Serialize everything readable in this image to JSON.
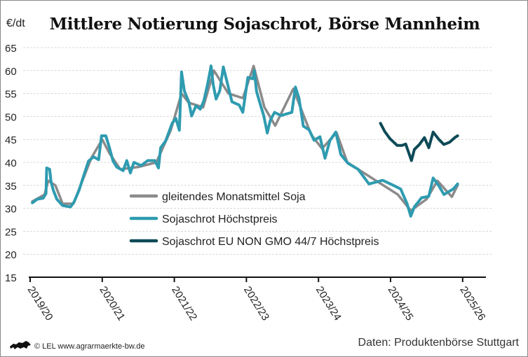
{
  "chart_data": {
    "type": "line",
    "title": "Mittlere Notierung Sojaschrot, Börse Mannheim",
    "ylabel": "€/dt",
    "ylim": [
      15,
      65
    ],
    "yticks": [
      15,
      20,
      25,
      30,
      35,
      40,
      45,
      50,
      55,
      60,
      65
    ],
    "xlim": [
      2019.5,
      2026.1
    ],
    "xticks": [
      {
        "x": 2019.5,
        "label": "2019/20"
      },
      {
        "x": 2020.5,
        "label": "2020/21"
      },
      {
        "x": 2021.5,
        "label": "2021/22"
      },
      {
        "x": 2022.5,
        "label": "2022/23"
      },
      {
        "x": 2023.5,
        "label": "2023/24"
      },
      {
        "x": 2024.5,
        "label": "2024/25"
      },
      {
        "x": 2025.5,
        "label": "2025/26"
      }
    ],
    "grid": "horizontal dashed",
    "legend_placement": "center-left",
    "series": [
      {
        "name": "gleitendes Monatsmittel Soja",
        "color": "#8c8a8a",
        "points": [
          [
            2019.53,
            31.5
          ],
          [
            2019.7,
            33
          ],
          [
            2019.75,
            36
          ],
          [
            2019.85,
            35
          ],
          [
            2019.95,
            31
          ],
          [
            2020.1,
            31
          ],
          [
            2020.25,
            37
          ],
          [
            2020.35,
            41
          ],
          [
            2020.5,
            45
          ],
          [
            2020.6,
            42
          ],
          [
            2020.75,
            38.5
          ],
          [
            2021.0,
            39
          ],
          [
            2021.25,
            40
          ],
          [
            2021.45,
            47
          ],
          [
            2021.6,
            55
          ],
          [
            2021.7,
            53
          ],
          [
            2021.9,
            52
          ],
          [
            2022.05,
            60
          ],
          [
            2022.25,
            55
          ],
          [
            2022.45,
            54
          ],
          [
            2022.6,
            61
          ],
          [
            2022.75,
            52
          ],
          [
            2022.9,
            48
          ],
          [
            2023.15,
            56
          ],
          [
            2023.4,
            46
          ],
          [
            2023.55,
            43
          ],
          [
            2023.75,
            46.5
          ],
          [
            2023.9,
            40
          ],
          [
            2024.3,
            36
          ],
          [
            2024.6,
            33
          ],
          [
            2024.78,
            29.5
          ],
          [
            2025.0,
            32
          ],
          [
            2025.15,
            36
          ],
          [
            2025.35,
            32.5
          ],
          [
            2025.43,
            35
          ]
        ]
      },
      {
        "name": "Sojaschrot Höchstpreis",
        "color": "#2e9bb0",
        "points": [
          [
            2019.53,
            31.2
          ],
          [
            2019.6,
            32.0
          ],
          [
            2019.68,
            32.2
          ],
          [
            2019.72,
            33.2
          ],
          [
            2019.73,
            38.8
          ],
          [
            2019.77,
            38.5
          ],
          [
            2019.79,
            35.8
          ],
          [
            2019.82,
            34.0
          ],
          [
            2019.87,
            32.0
          ],
          [
            2019.95,
            30.6
          ],
          [
            2020.06,
            30.3
          ],
          [
            2020.11,
            31.4
          ],
          [
            2020.18,
            34.0
          ],
          [
            2020.24,
            37.0
          ],
          [
            2020.31,
            40.3
          ],
          [
            2020.38,
            41.2
          ],
          [
            2020.45,
            40.6
          ],
          [
            2020.49,
            45.8
          ],
          [
            2020.55,
            45.8
          ],
          [
            2020.6,
            43.2
          ],
          [
            2020.65,
            40.3
          ],
          [
            2020.7,
            39.0
          ],
          [
            2020.79,
            38.2
          ],
          [
            2020.84,
            40.4
          ],
          [
            2020.89,
            37.7
          ],
          [
            2020.94,
            40.0
          ],
          [
            2021.04,
            39.3
          ],
          [
            2021.13,
            40.4
          ],
          [
            2021.23,
            40.4
          ],
          [
            2021.28,
            38.8
          ],
          [
            2021.31,
            43.2
          ],
          [
            2021.38,
            44.7
          ],
          [
            2021.47,
            48.5
          ],
          [
            2021.52,
            49.6
          ],
          [
            2021.57,
            47.0
          ],
          [
            2021.6,
            59.7
          ],
          [
            2021.64,
            55.5
          ],
          [
            2021.7,
            53.2
          ],
          [
            2021.74,
            50.1
          ],
          [
            2021.8,
            52.3
          ],
          [
            2021.86,
            51.6
          ],
          [
            2021.91,
            53.4
          ],
          [
            2021.96,
            56.9
          ],
          [
            2022.01,
            61.0
          ],
          [
            2022.04,
            56.9
          ],
          [
            2022.08,
            53.8
          ],
          [
            2022.13,
            55.6
          ],
          [
            2022.18,
            60.8
          ],
          [
            2022.3,
            53.2
          ],
          [
            2022.4,
            52.5
          ],
          [
            2022.45,
            50.9
          ],
          [
            2022.52,
            58.5
          ],
          [
            2022.59,
            58.2
          ],
          [
            2022.61,
            60.0
          ],
          [
            2022.64,
            55.5
          ],
          [
            2022.69,
            52.8
          ],
          [
            2022.74,
            50.2
          ],
          [
            2022.79,
            46.4
          ],
          [
            2022.83,
            49.1
          ],
          [
            2022.89,
            50.9
          ],
          [
            2022.98,
            50.2
          ],
          [
            2023.13,
            50.9
          ],
          [
            2023.18,
            56.4
          ],
          [
            2023.23,
            54.0
          ],
          [
            2023.29,
            47.9
          ],
          [
            2023.37,
            47.1
          ],
          [
            2023.44,
            44.8
          ],
          [
            2023.52,
            45.6
          ],
          [
            2023.59,
            40.9
          ],
          [
            2023.66,
            44.8
          ],
          [
            2023.74,
            46.6
          ],
          [
            2023.81,
            41.7
          ],
          [
            2023.91,
            39.8
          ],
          [
            2024.05,
            38.5
          ],
          [
            2024.2,
            35.3
          ],
          [
            2024.39,
            36.1
          ],
          [
            2024.54,
            35.0
          ],
          [
            2024.64,
            34.2
          ],
          [
            2024.73,
            31.0
          ],
          [
            2024.78,
            28.3
          ],
          [
            2024.83,
            30.3
          ],
          [
            2024.93,
            32.3
          ],
          [
            2025.03,
            32.6
          ],
          [
            2025.09,
            36.6
          ],
          [
            2025.17,
            34.9
          ],
          [
            2025.24,
            33.0
          ],
          [
            2025.37,
            34.2
          ],
          [
            2025.43,
            35.3
          ]
        ]
      },
      {
        "name": "Sojaschrot EU NON GMO 44/7 Höchstpreis",
        "color": "#0d4a57",
        "points": [
          [
            2024.36,
            48.5
          ],
          [
            2024.42,
            46.7
          ],
          [
            2024.49,
            45.2
          ],
          [
            2024.59,
            43.7
          ],
          [
            2024.66,
            43.7
          ],
          [
            2024.71,
            44.0
          ],
          [
            2024.79,
            40.4
          ],
          [
            2024.83,
            42.8
          ],
          [
            2024.9,
            43.9
          ],
          [
            2024.97,
            45.4
          ],
          [
            2025.03,
            43.2
          ],
          [
            2025.09,
            46.6
          ],
          [
            2025.17,
            45.0
          ],
          [
            2025.24,
            43.9
          ],
          [
            2025.32,
            44.4
          ],
          [
            2025.39,
            45.4
          ],
          [
            2025.43,
            45.8
          ]
        ]
      }
    ]
  },
  "footer": {
    "credit": "© LEL www.agrarmaerkte-bw.de",
    "source": "Daten: Produktenbörse Stuttgart"
  }
}
